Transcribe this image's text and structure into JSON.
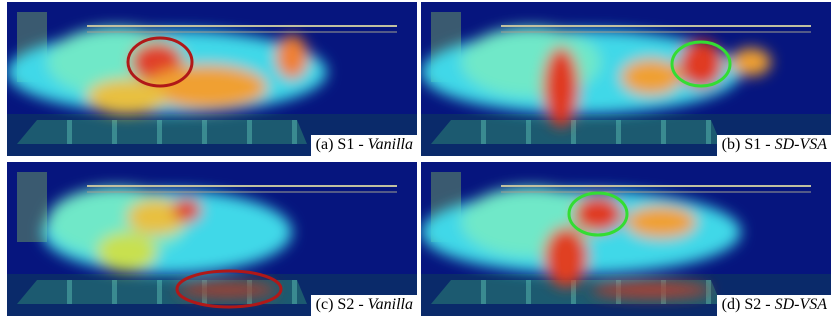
{
  "panels": [
    {
      "prefix": "(a) S1 -",
      "method": "Vanilla"
    },
    {
      "prefix": "(b) S1 -",
      "method": "SD-VSA"
    },
    {
      "prefix": "(c) S2 -",
      "method": "Vanilla"
    },
    {
      "prefix": "(d) S2 -",
      "method": "SD-VSA"
    }
  ]
}
